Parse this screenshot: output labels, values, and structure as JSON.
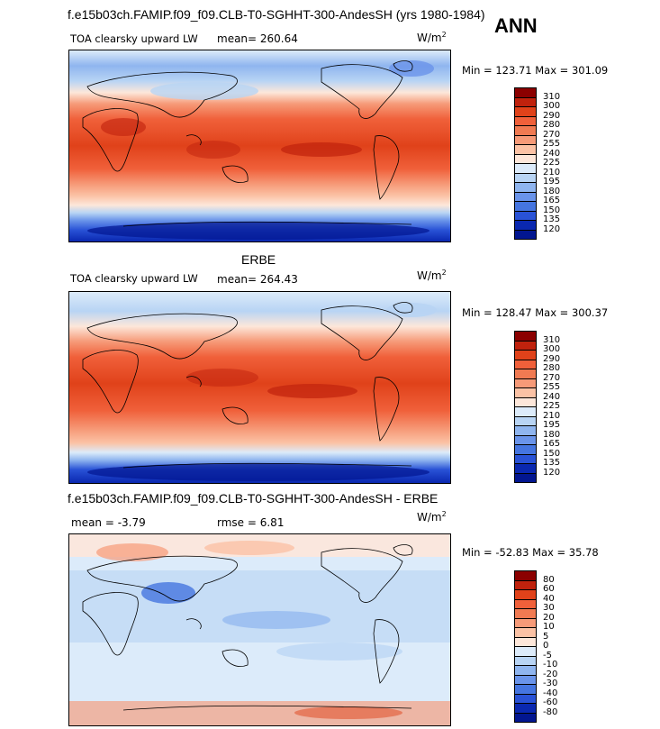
{
  "season": "ANN",
  "chart_data": [
    {
      "type": "heatmap",
      "title": "f.e15b03ch.FAMIP.f09_f09.CLB-T0-SGHHT-300-AndesSH (yrs 1980-1984)",
      "variable": "TOA clearsky upward LW",
      "stat_text": "mean=  260.64",
      "mean": 260.64,
      "units_base": "W/m",
      "units_exp": "2",
      "minmax_text": "Min = 123.71 Max = 301.09",
      "min": 123.71,
      "max": 301.09,
      "colorbar": {
        "levels": [
          "310",
          "300",
          "290",
          "280",
          "270",
          "255",
          "240",
          "225",
          "210",
          "195",
          "180",
          "165",
          "150",
          "135",
          "120"
        ],
        "colors": [
          "#8b0000",
          "#c0220d",
          "#e0421a",
          "#f0603a",
          "#f07a52",
          "#f69a78",
          "#fbc2a5",
          "#fde7da",
          "#dcebfa",
          "#b8d4f4",
          "#8fb5ef",
          "#6a94ea",
          "#4575e0",
          "#2952d6",
          "#0a28b0",
          "#021690"
        ]
      }
    },
    {
      "type": "heatmap",
      "title": "ERBE",
      "variable": "TOA clearsky upward LW",
      "stat_text": "mean=  264.43",
      "mean": 264.43,
      "units_base": "W/m",
      "units_exp": "2",
      "minmax_text": "Min = 128.47 Max = 300.37",
      "min": 128.47,
      "max": 300.37,
      "colorbar": {
        "levels": [
          "310",
          "300",
          "290",
          "280",
          "270",
          "255",
          "240",
          "225",
          "210",
          "195",
          "180",
          "165",
          "150",
          "135",
          "120"
        ],
        "colors": [
          "#8b0000",
          "#c0220d",
          "#e0421a",
          "#f0603a",
          "#f07a52",
          "#f69a78",
          "#fbc2a5",
          "#fde7da",
          "#dcebfa",
          "#b8d4f4",
          "#8fb5ef",
          "#6a94ea",
          "#4575e0",
          "#2952d6",
          "#0a28b0",
          "#021690"
        ]
      }
    },
    {
      "type": "heatmap",
      "title": "f.e15b03ch.FAMIP.f09_f09.CLB-T0-SGHHT-300-AndesSH - ERBE",
      "stat_text": "mean =   -3.79",
      "mean": -3.79,
      "rmse_text": "rmse =    6.81",
      "rmse": 6.81,
      "units_base": "W/m",
      "units_exp": "2",
      "minmax_text": "Min = -52.83 Max =  35.78",
      "min": -52.83,
      "max": 35.78,
      "colorbar": {
        "levels": [
          "80",
          "60",
          "40",
          "30",
          "20",
          "10",
          "5",
          "0",
          "-5",
          "-10",
          "-20",
          "-30",
          "-40",
          "-60",
          "-80"
        ],
        "colors": [
          "#8b0000",
          "#c0220d",
          "#e0421a",
          "#f0603a",
          "#f07a52",
          "#f69a78",
          "#fbc2a5",
          "#fde7da",
          "#dcebfa",
          "#b8d4f4",
          "#8fb5ef",
          "#6a94ea",
          "#4575e0",
          "#2952d6",
          "#0a28b0",
          "#021690"
        ]
      }
    }
  ]
}
